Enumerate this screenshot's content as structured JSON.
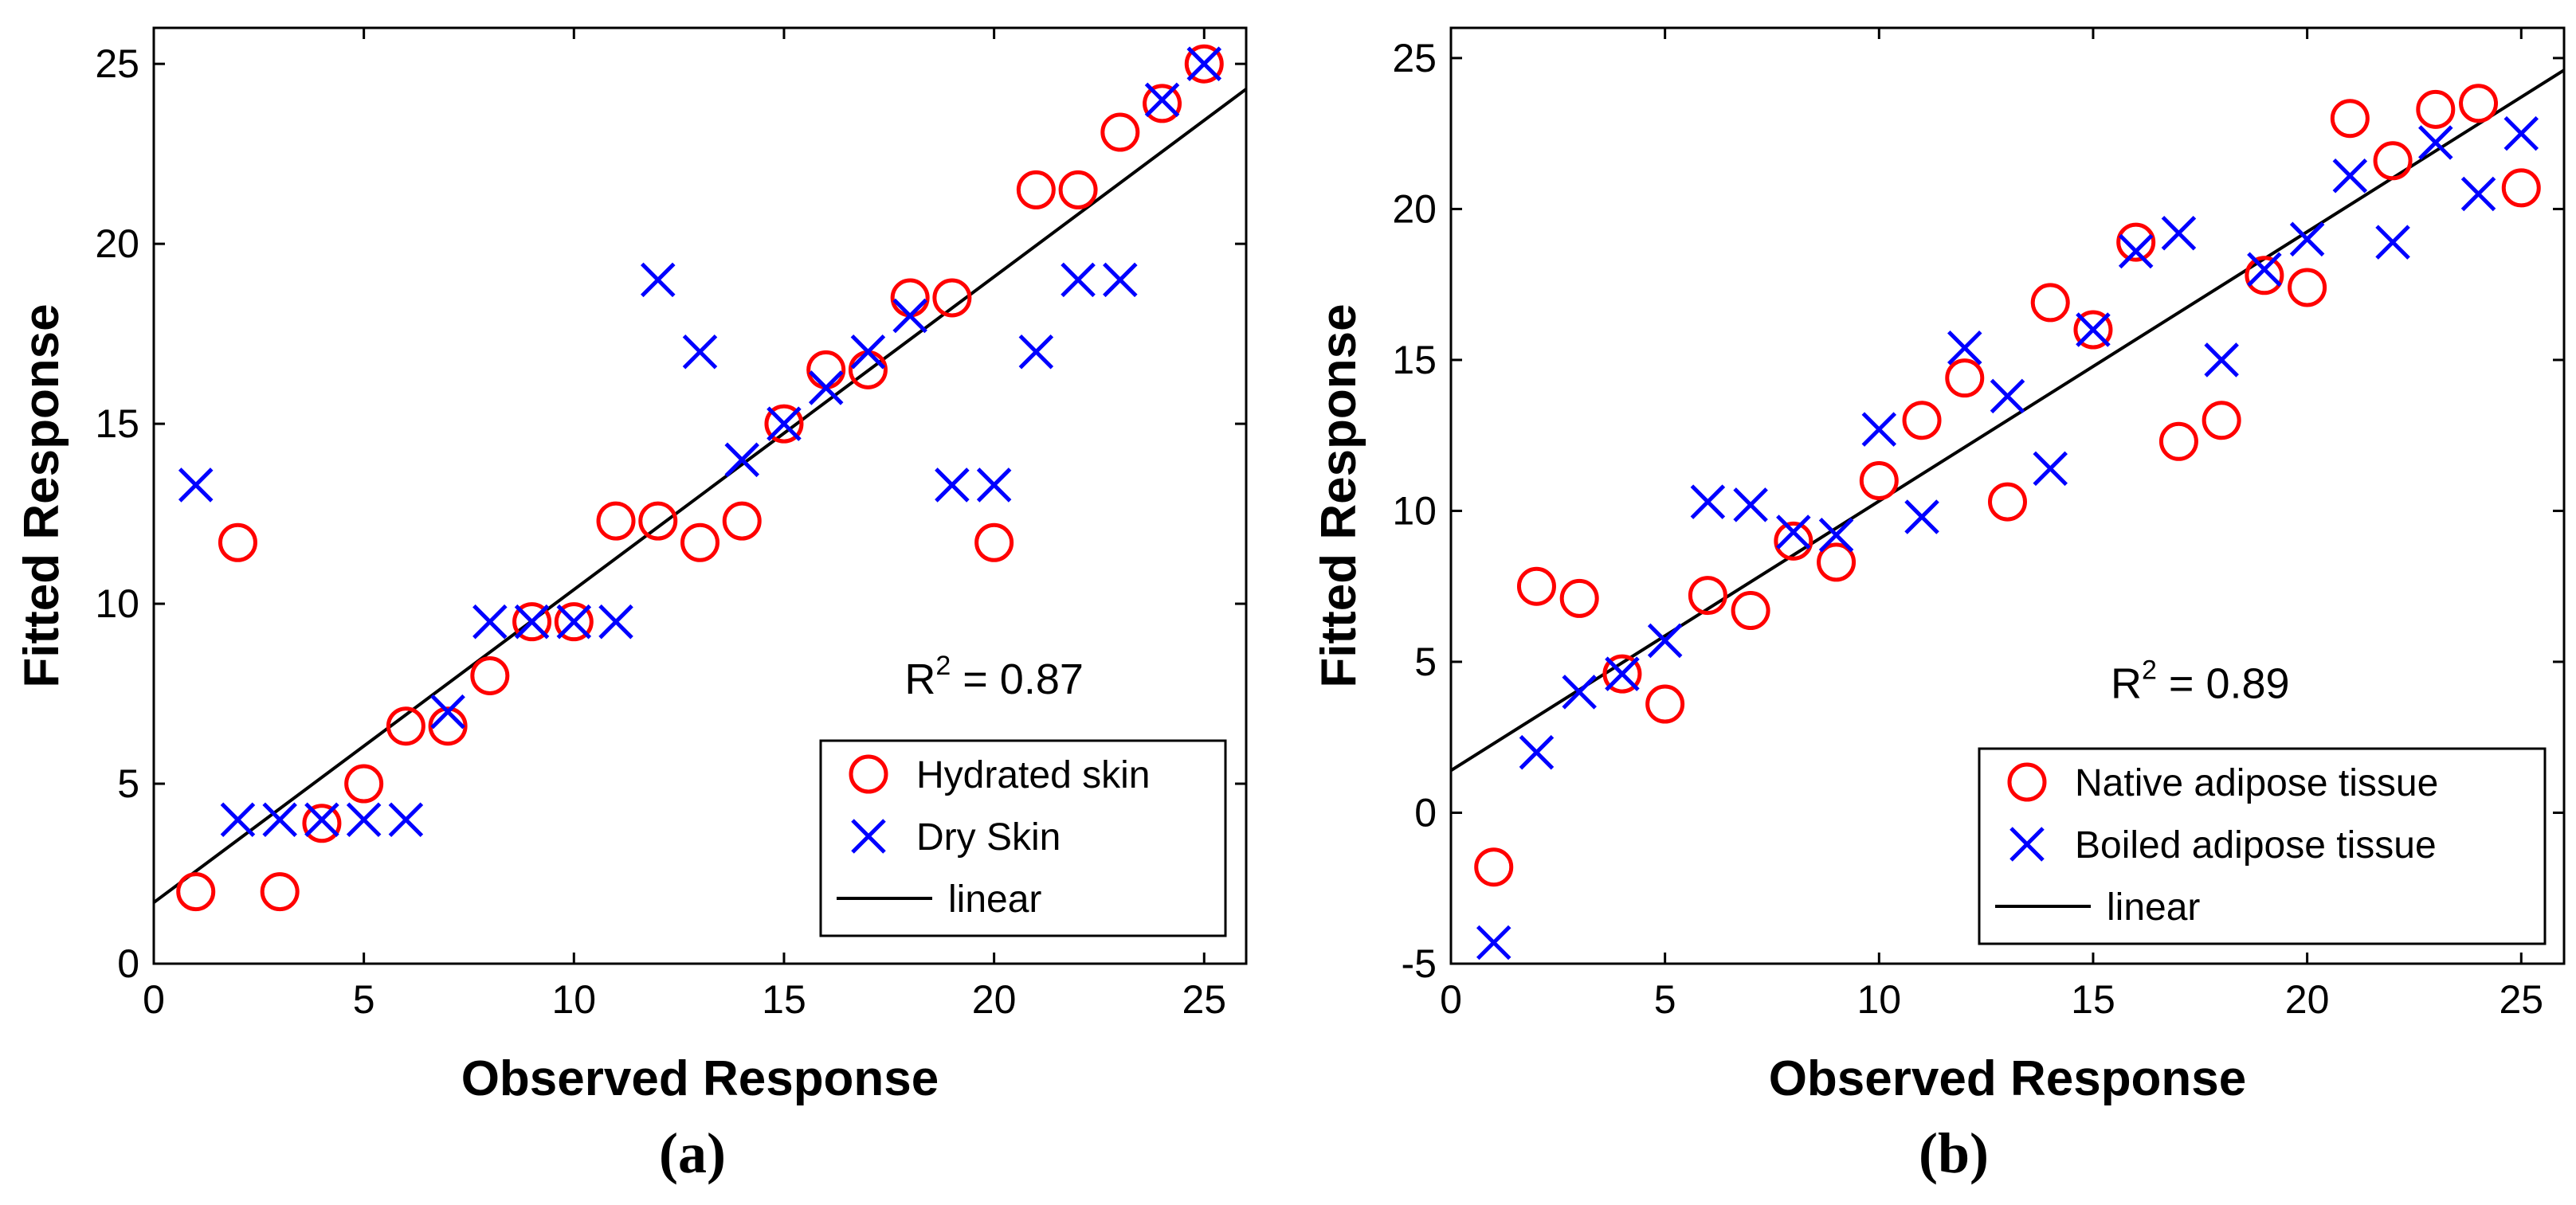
{
  "chart_data": [
    {
      "type": "scatter",
      "panel_label": "(a)",
      "xlabel": "Observed Response",
      "ylabel": "Fitted Response",
      "xlim": [
        0,
        26
      ],
      "ylim": [
        0,
        26
      ],
      "xticks": [
        0,
        5,
        10,
        15,
        20,
        25
      ],
      "yticks": [
        0,
        5,
        10,
        15,
        20,
        25
      ],
      "annotation": {
        "base": "R",
        "sup": "2",
        "rest": " = 0.87",
        "x": 20,
        "y": 7.5
      },
      "legend_position": "bottom-right",
      "series": [
        {
          "name": "Hydrated skin",
          "marker": "circle",
          "color": "#ff0000",
          "x": [
            1,
            2,
            3,
            4,
            5,
            6,
            7,
            8,
            9,
            10,
            11,
            12,
            13,
            14,
            15,
            16,
            17,
            18,
            19,
            20,
            21,
            22,
            23,
            24,
            25
          ],
          "y": [
            2,
            11.7,
            2,
            3.9,
            5,
            6.6,
            6.6,
            8,
            9.5,
            9.5,
            12.3,
            12.3,
            11.7,
            12.3,
            15,
            16.5,
            16.5,
            18.5,
            18.5,
            11.7,
            21.5,
            21.5,
            23.1,
            23.9,
            25
          ]
        },
        {
          "name": "Dry Skin",
          "marker": "x",
          "color": "#0000ff",
          "x": [
            1,
            2,
            3,
            4,
            5,
            6,
            7,
            8,
            9,
            10,
            11,
            12,
            13,
            14,
            15,
            16,
            17,
            18,
            19,
            20,
            21,
            22,
            23,
            24,
            25
          ],
          "y": [
            13.3,
            4,
            4,
            4,
            4,
            4,
            7,
            9.5,
            9.5,
            9.5,
            9.5,
            19,
            17,
            14,
            15,
            16,
            17,
            18,
            13.3,
            13.3,
            17,
            19,
            19,
            24,
            25
          ]
        },
        {
          "name": "linear",
          "type": "line",
          "color": "#000000",
          "x": [
            0,
            26
          ],
          "y": [
            1.7,
            24.3
          ]
        }
      ]
    },
    {
      "type": "scatter",
      "panel_label": "(b)",
      "xlabel": "Observed Response",
      "ylabel": "Fitted Response",
      "xlim": [
        0,
        26
      ],
      "ylim": [
        -5,
        26
      ],
      "xticks": [
        0,
        5,
        10,
        15,
        20,
        25
      ],
      "yticks": [
        -5,
        0,
        5,
        10,
        15,
        20,
        25
      ],
      "annotation": {
        "base": "R",
        "sup": "2",
        "rest": " = 0.89",
        "x": 17.5,
        "y": 3.8
      },
      "legend_position": "bottom-right",
      "series": [
        {
          "name": "Native adipose tissue",
          "marker": "circle",
          "color": "#ff0000",
          "x": [
            1,
            2,
            3,
            4,
            5,
            6,
            7,
            8,
            9,
            10,
            11,
            12,
            13,
            14,
            15,
            16,
            17,
            18,
            19,
            20,
            21,
            22,
            23,
            24,
            25
          ],
          "y": [
            -1.8,
            7.5,
            7.1,
            4.6,
            3.6,
            7.2,
            6.7,
            9,
            8.3,
            11,
            13,
            14.4,
            10.3,
            16.9,
            16,
            18.9,
            12.3,
            13,
            17.8,
            17.4,
            23,
            21.6,
            23.3,
            23.5,
            20.7
          ]
        },
        {
          "name": "Boiled adipose tissue",
          "marker": "x",
          "color": "#0000ff",
          "x": [
            1,
            2,
            3,
            4,
            5,
            6,
            7,
            8,
            9,
            10,
            11,
            12,
            13,
            14,
            15,
            16,
            17,
            18,
            19,
            20,
            21,
            22,
            23,
            24,
            25
          ],
          "y": [
            -4.3,
            2,
            4,
            4.6,
            5.7,
            10.3,
            10.2,
            9.3,
            9.2,
            12.7,
            9.8,
            15.4,
            13.8,
            11.4,
            16,
            18.6,
            19.2,
            15,
            18,
            19,
            21.1,
            18.9,
            22.2,
            20.5,
            22.5
          ]
        },
        {
          "name": "linear",
          "type": "line",
          "color": "#000000",
          "x": [
            0,
            26
          ],
          "y": [
            1.4,
            24.6
          ]
        }
      ]
    }
  ]
}
